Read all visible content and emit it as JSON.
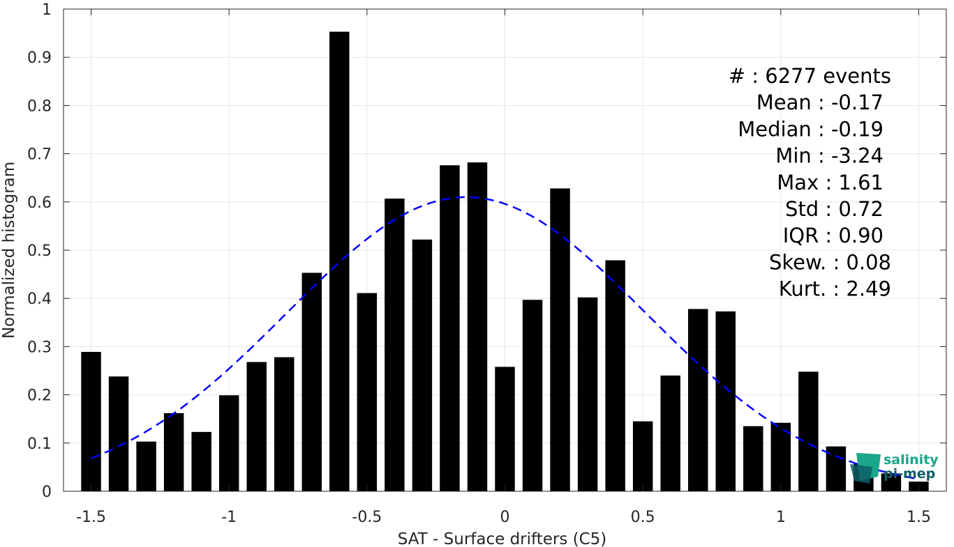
{
  "chart_data": {
    "type": "bar",
    "xlabel": "SAT - Surface drifters (C5)",
    "ylabel": "Normalized histogram",
    "xlim": [
      -1.6,
      1.6
    ],
    "ylim": [
      0,
      1
    ],
    "xticks": [
      -1.5,
      -1,
      -0.5,
      0,
      0.5,
      1,
      1.5
    ],
    "xtick_labels": [
      "-1.5",
      "-1",
      "-0.5",
      "0",
      "0.5",
      "1",
      "1.5"
    ],
    "yticks": [
      0,
      0.1,
      0.2,
      0.3,
      0.4,
      0.5,
      0.6,
      0.7,
      0.8,
      0.9,
      1
    ],
    "ytick_labels": [
      "0",
      "0.1",
      "0.2",
      "0.3",
      "0.4",
      "0.5",
      "0.6",
      "0.7",
      "0.8",
      "0.9",
      "1"
    ],
    "grid": true,
    "bar_color": "#000000",
    "bin_width": 0.1,
    "bins": [
      -1.5,
      -1.4,
      -1.3,
      -1.2,
      -1.1,
      -1.0,
      -0.9,
      -0.8,
      -0.7,
      -0.6,
      -0.5,
      -0.4,
      -0.3,
      -0.2,
      -0.1,
      0.0,
      0.1,
      0.2,
      0.3,
      0.4,
      0.5,
      0.6,
      0.7,
      0.8,
      0.9,
      1.0,
      1.1,
      1.2,
      1.3,
      1.4,
      1.5
    ],
    "values": [
      0.289,
      0.238,
      0.103,
      0.162,
      0.123,
      0.199,
      0.268,
      0.278,
      0.453,
      0.953,
      0.411,
      0.607,
      0.522,
      0.676,
      0.682,
      0.258,
      0.397,
      0.628,
      0.402,
      0.479,
      0.145,
      0.24,
      0.378,
      0.373,
      0.135,
      0.142,
      0.248,
      0.093,
      0.057,
      0.037,
      0.02
    ],
    "fit": {
      "type": "gaussian",
      "mean": -0.14,
      "std": 0.65,
      "peak": 0.61,
      "x_range": [
        -1.5,
        1.5
      ],
      "color": "#0000ff",
      "style": "dashed"
    },
    "annotations": [
      {
        "key": "#",
        "value": "6277 events"
      },
      {
        "key": "Mean",
        "value": "-0.17"
      },
      {
        "key": "Median",
        "value": "-0.19"
      },
      {
        "key": "Min",
        "value": "-3.24"
      },
      {
        "key": "Max",
        "value": "1.61"
      },
      {
        "key": "Std",
        "value": "0.72"
      },
      {
        "key": "IQR",
        "value": "0.90"
      },
      {
        "key": "Skew.",
        "value": "0.08"
      },
      {
        "key": "Kurt.",
        "value": "2.49"
      }
    ]
  },
  "logo": {
    "line1": "salinity",
    "line2": "pi-mep",
    "color1": "#1aa68a",
    "color2": "#0e5e66"
  }
}
